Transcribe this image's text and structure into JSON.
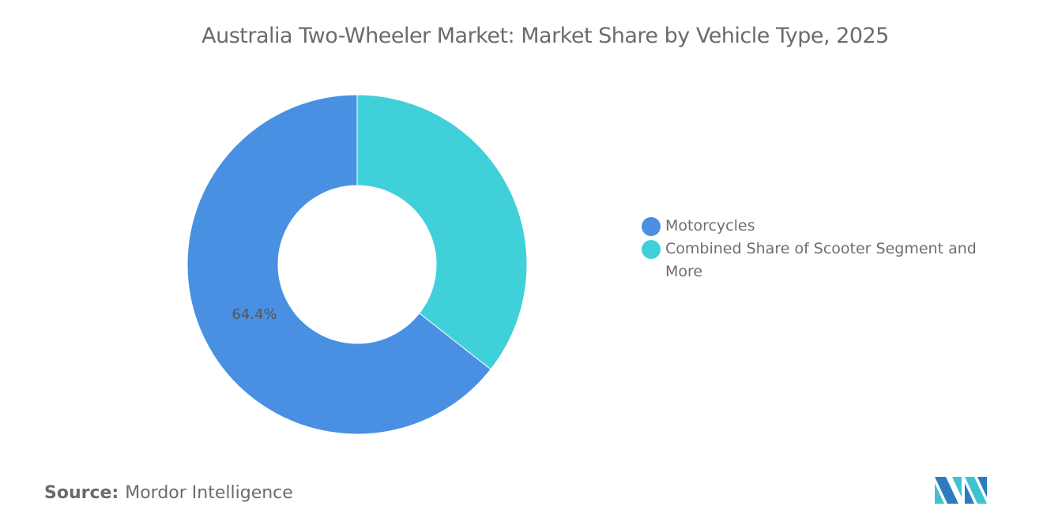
{
  "chart_data": {
    "type": "pie",
    "title": "Australia Two-Wheeler Market: Market Share by Vehicle Type, 2025",
    "categories": [
      "Motorcycles",
      "Combined Share of Scooter Segment and More"
    ],
    "values": [
      64.4,
      35.6
    ],
    "colors": [
      "#4a90e2",
      "#40d0da"
    ],
    "data_labels": [
      "64.4%",
      ""
    ],
    "donut": true,
    "legend_position": "right"
  },
  "source": {
    "label": "Source:",
    "value": "Mordor Intelligence"
  },
  "logo_text": "Mordor Intelligence"
}
